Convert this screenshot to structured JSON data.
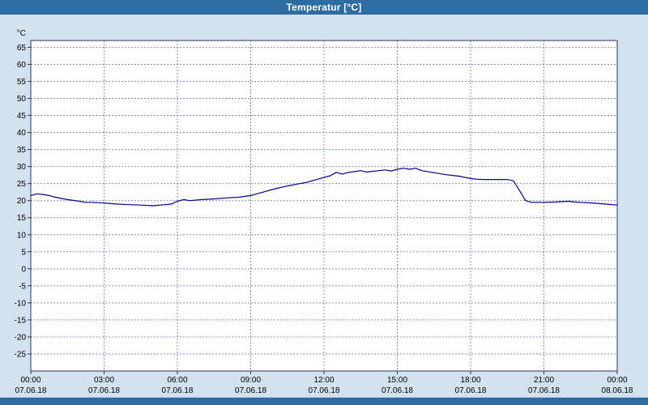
{
  "window": {
    "title": "Temperatur [°C]"
  },
  "colors": {
    "titlebar_bg": "#2e6da4",
    "titlebar_text": "#ffffff",
    "chart_bg": "#d2e2ee",
    "plot_bg": "#ffffff",
    "grid": "#3c4e9e",
    "axis": "#303060",
    "line": "#00008b",
    "label": "#000000",
    "scrollbar": "#2e6da4"
  },
  "chart_data": {
    "type": "line",
    "title": "Temperatur [°C]",
    "ylabel": "°C",
    "xlabel": "",
    "ylim": [
      -30,
      67
    ],
    "grid": true,
    "legend": "none",
    "yticks": [
      65,
      60,
      55,
      50,
      45,
      40,
      35,
      30,
      25,
      20,
      15,
      10,
      5,
      0,
      -5,
      -10,
      -15,
      -20,
      -25
    ],
    "xticks": [
      {
        "hour": 0,
        "time": "00:00",
        "date": "07.06.18"
      },
      {
        "hour": 3,
        "time": "03:00",
        "date": "07.06.18"
      },
      {
        "hour": 6,
        "time": "06:00",
        "date": "07.06.18"
      },
      {
        "hour": 9,
        "time": "09:00",
        "date": "07.06.18"
      },
      {
        "hour": 12,
        "time": "12:00",
        "date": "07.06.18"
      },
      {
        "hour": 15,
        "time": "15:00",
        "date": "07.06.18"
      },
      {
        "hour": 18,
        "time": "18:00",
        "date": "07.06.18"
      },
      {
        "hour": 21,
        "time": "21:00",
        "date": "07.06.18"
      },
      {
        "hour": 24,
        "time": "00:00",
        "date": "08.06.18"
      }
    ],
    "x": [
      0,
      0.25,
      0.5,
      0.75,
      1,
      1.5,
      2,
      2.25,
      2.5,
      3,
      3.5,
      4,
      4.5,
      5,
      5.5,
      5.75,
      6,
      6.25,
      6.5,
      7,
      7.5,
      8,
      8.5,
      9,
      9.5,
      10,
      10.5,
      11,
      11.25,
      11.5,
      12,
      12.25,
      12.5,
      12.75,
      13,
      13.25,
      13.5,
      13.75,
      14,
      14.25,
      14.5,
      14.75,
      15,
      15.25,
      15.5,
      15.75,
      16,
      16.5,
      17,
      17.5,
      18,
      18.25,
      18.5,
      19,
      19.5,
      19.75,
      20,
      20.25,
      20.5,
      21,
      21.5,
      22,
      22.25,
      22.5,
      23,
      23.5,
      24
    ],
    "values": [
      21.5,
      22,
      21.8,
      21.5,
      21,
      20.3,
      19.8,
      19.5,
      19.5,
      19.3,
      19,
      18.8,
      18.7,
      18.5,
      18.8,
      19,
      19.8,
      20.3,
      20,
      20.3,
      20.5,
      20.8,
      21,
      21.5,
      22.5,
      23.5,
      24.3,
      25,
      25.3,
      25.8,
      26.8,
      27.3,
      28.3,
      27.8,
      28.3,
      28.5,
      28.8,
      28.4,
      28.6,
      28.8,
      29,
      28.7,
      29.2,
      29.5,
      29.2,
      29.5,
      28.8,
      28.2,
      27.6,
      27.2,
      26.5,
      26.3,
      26.2,
      26.2,
      26.2,
      25.8,
      23,
      20,
      19.5,
      19.5,
      19.6,
      19.8,
      19.6,
      19.5,
      19.3,
      19,
      18.7
    ]
  }
}
